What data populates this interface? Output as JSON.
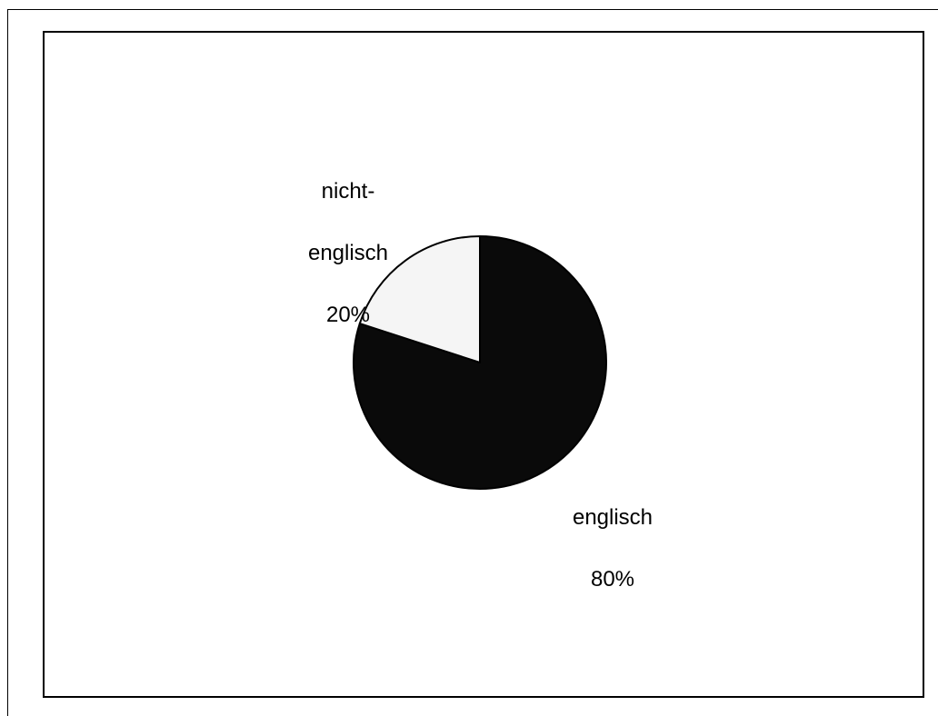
{
  "chart_data": {
    "type": "pie",
    "title": "",
    "slices": [
      {
        "label_lines": [
          "englisch",
          "80%"
        ],
        "label": "englisch",
        "value": 80,
        "percent": "80%",
        "color": "#0a0a0a"
      },
      {
        "label_lines": [
          "nicht-",
          "englisch",
          "20%"
        ],
        "label": "nicht-englisch",
        "value": 20,
        "percent": "20%",
        "color": "#f5f5f5"
      }
    ],
    "start_angle": "12 o'clock",
    "direction": "clockwise",
    "outline_color": "#000000",
    "legend": "none"
  }
}
